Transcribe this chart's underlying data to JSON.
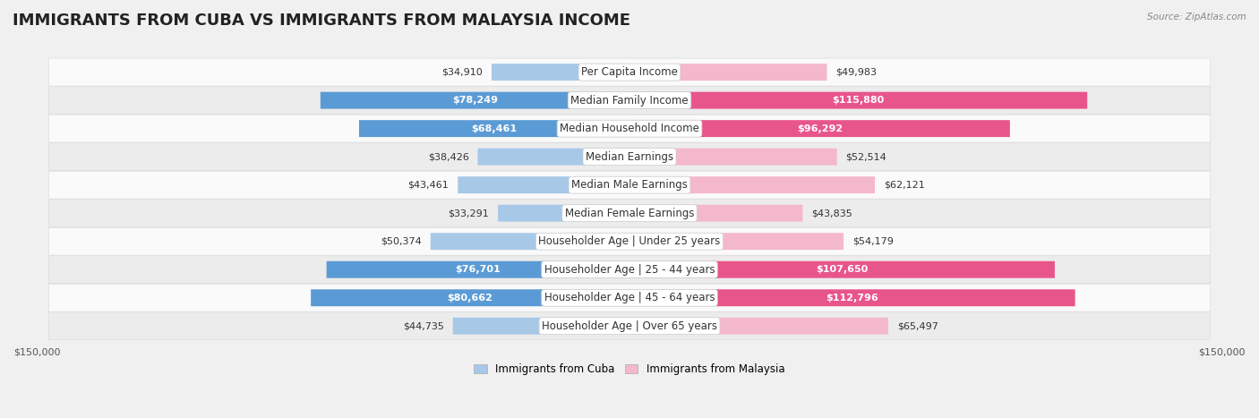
{
  "title": "IMMIGRANTS FROM CUBA VS IMMIGRANTS FROM MALAYSIA INCOME",
  "source": "Source: ZipAtlas.com",
  "categories": [
    "Per Capita Income",
    "Median Family Income",
    "Median Household Income",
    "Median Earnings",
    "Median Male Earnings",
    "Median Female Earnings",
    "Householder Age | Under 25 years",
    "Householder Age | 25 - 44 years",
    "Householder Age | 45 - 64 years",
    "Householder Age | Over 65 years"
  ],
  "cuba_values": [
    34910,
    78249,
    68461,
    38426,
    43461,
    33291,
    50374,
    76701,
    80662,
    44735
  ],
  "malaysia_values": [
    49983,
    115880,
    96292,
    52514,
    62121,
    43835,
    54179,
    107650,
    112796,
    65497
  ],
  "cuba_color_light": "#a8c8e8",
  "cuba_color_dark": "#5b9bd5",
  "malaysia_color_light": "#f4b8cc",
  "malaysia_color_dark": "#e8558a",
  "max_value": 150000,
  "bar_height": 0.6,
  "background_color": "#f0f0f0",
  "row_color_light": "#fafafa",
  "row_color_dark": "#ececec",
  "title_fontsize": 13,
  "label_fontsize": 8.5,
  "value_fontsize": 8,
  "tick_fontsize": 8,
  "legend_cuba": "Immigrants from Cuba",
  "legend_malaysia": "Immigrants from Malaysia",
  "dark_threshold_cuba": 60000,
  "dark_threshold_malaysia": 85000
}
